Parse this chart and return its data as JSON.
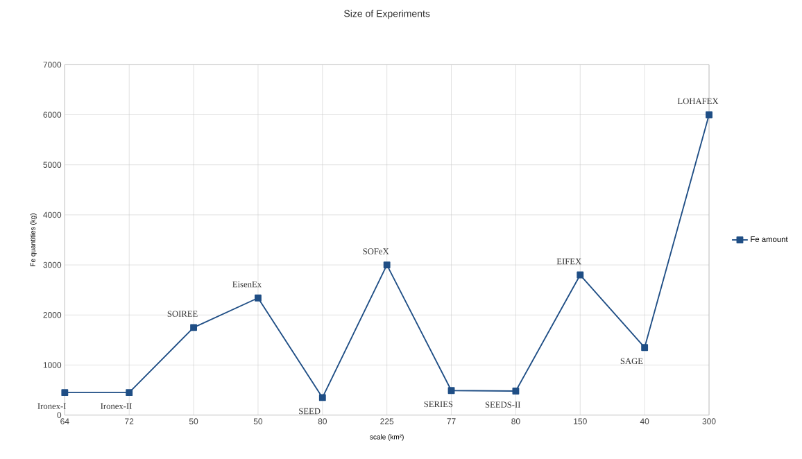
{
  "chart_data": {
    "type": "line",
    "title": "Size of Experiments",
    "xlabel": "scale (km²)",
    "ylabel": "Fe quantities (kg)",
    "categories": [
      "64",
      "72",
      "50",
      "50",
      "80",
      "225",
      "77",
      "80",
      "150",
      "40",
      "300"
    ],
    "series": [
      {
        "name": "Fe amount",
        "color": "#1f4e85",
        "values": [
          450,
          450,
          1750,
          2340,
          350,
          3000,
          490,
          480,
          2800,
          1350,
          6000
        ]
      }
    ],
    "ylim": [
      0,
      7000
    ],
    "yticks": [
      0,
      1000,
      2000,
      3000,
      4000,
      5000,
      6000,
      7000
    ],
    "grid": true,
    "legend": "right",
    "marker": "square",
    "line_style": "solid",
    "annotations": [
      {
        "text": "Ironex-I",
        "x": "64",
        "y": 450
      },
      {
        "text": "Ironex-II",
        "x": "72",
        "y": 450
      },
      "SOIREE",
      "EisenEx",
      "SEED",
      {
        "text": "SOFeX",
        "x": "225",
        "y": 3000
      },
      {
        "text": "SERIES",
        "x": "77",
        "y": 490
      },
      "SEEDS-II",
      {
        "text": "EIFEX",
        "x": "150",
        "y": 2800
      },
      {
        "text": "SAGE",
        "x": "40",
        "y": 1350
      },
      {
        "text": "LOHAFEX",
        "x": "300",
        "y": 6000
      }
    ]
  }
}
